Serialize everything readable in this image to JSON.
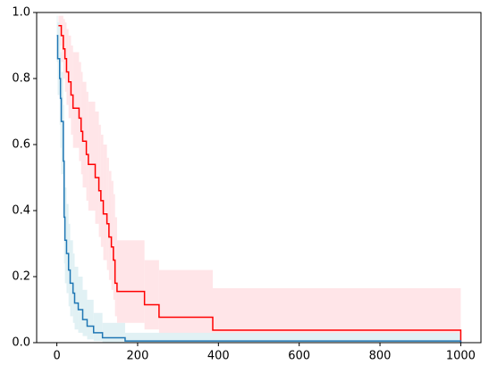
{
  "chart_data": {
    "type": "step",
    "xlim": [
      -50,
      1050
    ],
    "ylim": [
      0,
      1
    ],
    "xticks": [
      0,
      200,
      400,
      600,
      800,
      1000
    ],
    "yticks": [
      {
        "value": 0,
        "label": "0.0"
      },
      0.2,
      0.4,
      0.6,
      0.8,
      {
        "value": 1,
        "label": "1.0"
      }
    ],
    "series": [
      {
        "color": "#ff0000",
        "band_color": "#ffe5e8",
        "x": [
          4,
          11,
          16,
          20,
          24,
          29,
          35,
          40,
          55,
          60,
          64,
          73,
          78,
          95,
          104,
          109,
          115,
          124,
          129,
          135,
          140,
          144,
          149,
          217,
          253,
          386,
          1000
        ],
        "values": [
          0.96,
          0.93,
          0.89,
          0.86,
          0.82,
          0.79,
          0.75,
          0.71,
          0.68,
          0.64,
          0.61,
          0.57,
          0.54,
          0.5,
          0.46,
          0.43,
          0.39,
          0.36,
          0.32,
          0.29,
          0.25,
          0.18,
          0.155,
          0.115,
          0.077,
          0.038,
          0
        ],
        "upper": [
          0.99,
          0.99,
          0.98,
          0.97,
          0.95,
          0.93,
          0.9,
          0.88,
          0.85,
          0.82,
          0.79,
          0.76,
          0.73,
          0.7,
          0.66,
          0.63,
          0.6,
          0.56,
          0.52,
          0.49,
          0.45,
          0.38,
          0.31,
          0.25,
          0.22,
          0.165,
          null
        ],
        "lower": [
          0.9,
          0.85,
          0.8,
          0.76,
          0.72,
          0.68,
          0.63,
          0.59,
          0.55,
          0.51,
          0.47,
          0.43,
          0.4,
          0.36,
          0.32,
          0.29,
          0.25,
          0.22,
          0.19,
          0.16,
          0.13,
          0.08,
          0.06,
          0.04,
          0.02,
          0.005,
          null
        ]
      },
      {
        "color": "#1f77b4",
        "band_color": "#e1f1f4",
        "x": [
          0,
          2,
          7,
          9,
          11,
          16,
          18,
          20,
          24,
          29,
          33,
          40,
          44,
          53,
          64,
          75,
          91,
          113,
          169,
          1000
        ],
        "values": [
          0.93,
          0.86,
          0.8,
          0.74,
          0.67,
          0.55,
          0.38,
          0.31,
          0.27,
          0.22,
          0.18,
          0.15,
          0.12,
          0.1,
          0.07,
          0.05,
          0.03,
          0.015,
          0.005,
          0
        ],
        "upper": [
          0.99,
          0.97,
          0.93,
          0.88,
          0.82,
          0.72,
          0.55,
          0.47,
          0.42,
          0.36,
          0.31,
          0.27,
          0.23,
          0.2,
          0.16,
          0.13,
          0.09,
          0.06,
          0.03,
          null
        ],
        "lower": [
          0.85,
          0.75,
          0.66,
          0.59,
          0.51,
          0.39,
          0.24,
          0.18,
          0.15,
          0.11,
          0.08,
          0.06,
          0.04,
          0.03,
          0.02,
          0.01,
          0.005,
          0,
          0,
          null
        ]
      }
    ]
  }
}
